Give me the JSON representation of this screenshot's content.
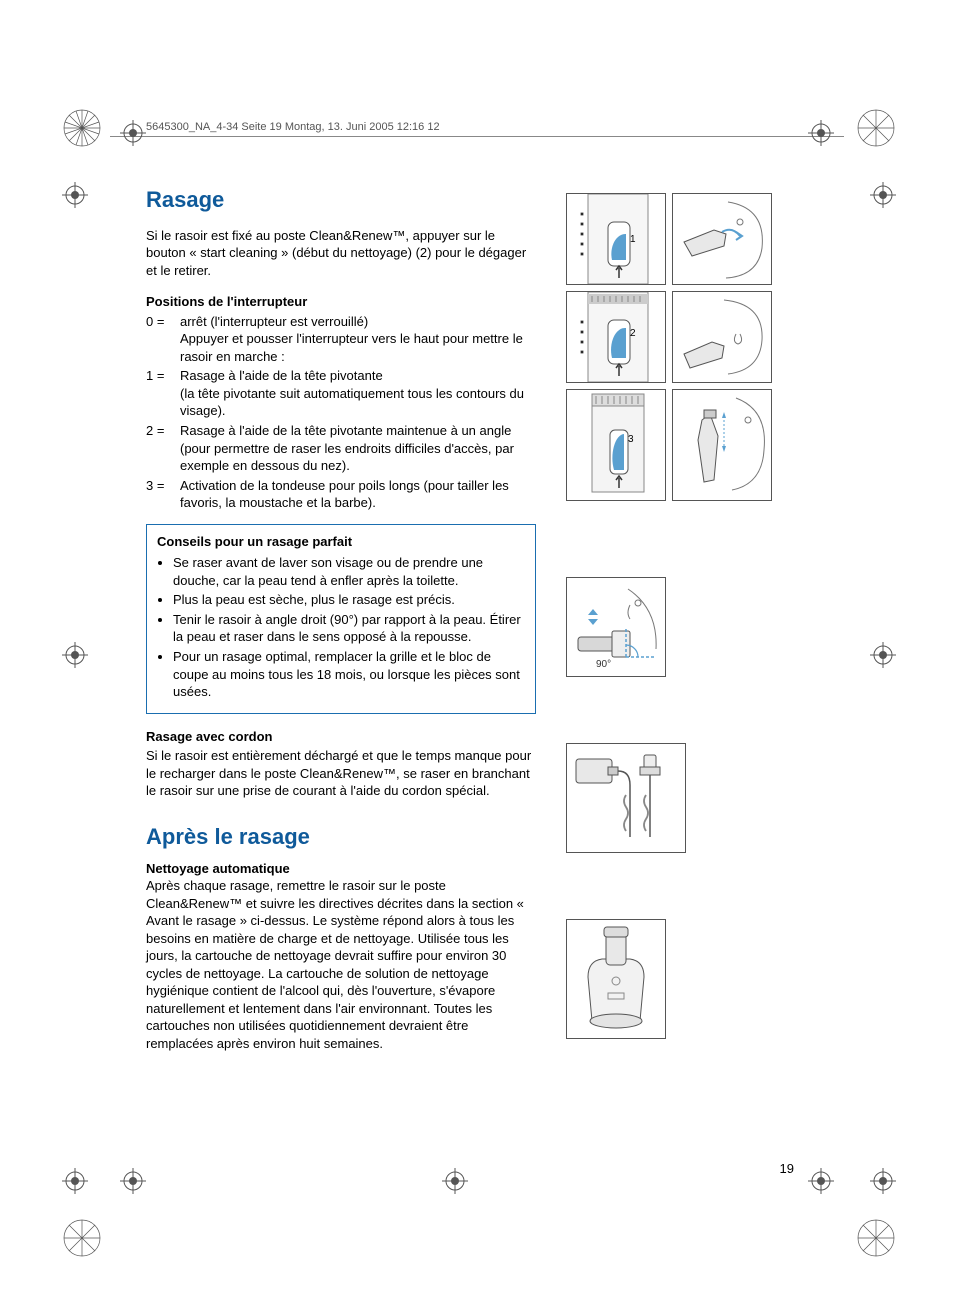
{
  "header": "5645300_NA_4-34  Seite 19  Montag, 13. Juni 2005  12:16 12",
  "page_number": "19",
  "colors": {
    "heading": "#0f5a9a",
    "accent": "#5aa0d0",
    "line": "#555555",
    "text": "#000000"
  },
  "section1": {
    "title": "Rasage",
    "intro": "Si le rasoir est fixé au poste Clean&Renew™, appuyer sur le bouton « start cleaning » (début du nettoyage) (2) pour le dégager et le retirer.",
    "switch_heading": "Positions de l'interrupteur",
    "switch": [
      {
        "k": "0 =",
        "v": "arrêt (l'interrupteur est verrouillé)\nAppuyer et pousser l'interrupteur vers le haut pour mettre le rasoir en marche :"
      },
      {
        "k": "1 =",
        "v": "Rasage à l'aide de la tête pivotante\n(la tête pivotante suit automatiquement tous les contours du visage)."
      },
      {
        "k": "2 =",
        "v": "Rasage à l'aide de la tête pivotante maintenue à un angle (pour permettre de raser les endroits difficiles d'accès, par exemple en dessous du nez)."
      },
      {
        "k": "3 =",
        "v": "Activation de la tondeuse pour poils longs (pour tailler les favoris, la moustache et la barbe)."
      }
    ],
    "tips_heading": "Conseils pour un rasage parfait",
    "tips": [
      "Se raser avant de laver son visage ou de prendre une douche, car la peau tend à enfler après la toilette.",
      "Plus la peau est sèche, plus le rasage est précis.",
      "Tenir le rasoir à angle droit (90°) par rapport à la peau. Étirer la peau et raser dans le sens opposé à la repousse.",
      "Pour un rasage optimal, remplacer la grille et le bloc de coupe au moins tous les 18 mois, ou lorsque les pièces sont usées."
    ],
    "cord_heading": "Rasage avec cordon",
    "cord_text": "Si le rasoir est entièrement déchargé et que le temps manque pour le recharger dans le poste Clean&Renew™, se raser en branchant le rasoir sur une prise de courant à l'aide du cordon spécial."
  },
  "section2": {
    "title": "Après le rasage",
    "auto_heading": "Nettoyage automatique",
    "auto_text": "Après chaque rasage, remettre le rasoir sur le poste Clean&Renew™ et suivre les directives décrites dans la section « Avant le rasage » ci-dessus. Le système répond alors à tous les besoins en matière de charge et de nettoyage. Utilisée tous les jours, la cartouche de nettoyage devrait suffire pour environ 30 cycles de nettoyage. La cartouche de solution de nettoyage hygiénique contient de l'alcool qui, dès l'ouverture, s'évapore naturellement et lentement dans l'air environnant. Toutes les cartouches non utilisées quotidiennement devraient être remplacées après environ huit semaines."
  },
  "diagrams": {
    "grid": [
      {
        "name": "switch-pos-1-diagram",
        "label": "1"
      },
      {
        "name": "face-shave-1-diagram",
        "label": ""
      },
      {
        "name": "switch-pos-2-diagram",
        "label": "2"
      },
      {
        "name": "face-shave-2-diagram",
        "label": ""
      },
      {
        "name": "switch-pos-3-diagram",
        "label": "3"
      },
      {
        "name": "trimmer-use-diagram",
        "label": ""
      }
    ],
    "angle": {
      "name": "angle-90-diagram",
      "label": "90°"
    },
    "cord": {
      "name": "cord-charging-diagram"
    },
    "station": {
      "name": "cleaning-station-diagram"
    }
  }
}
